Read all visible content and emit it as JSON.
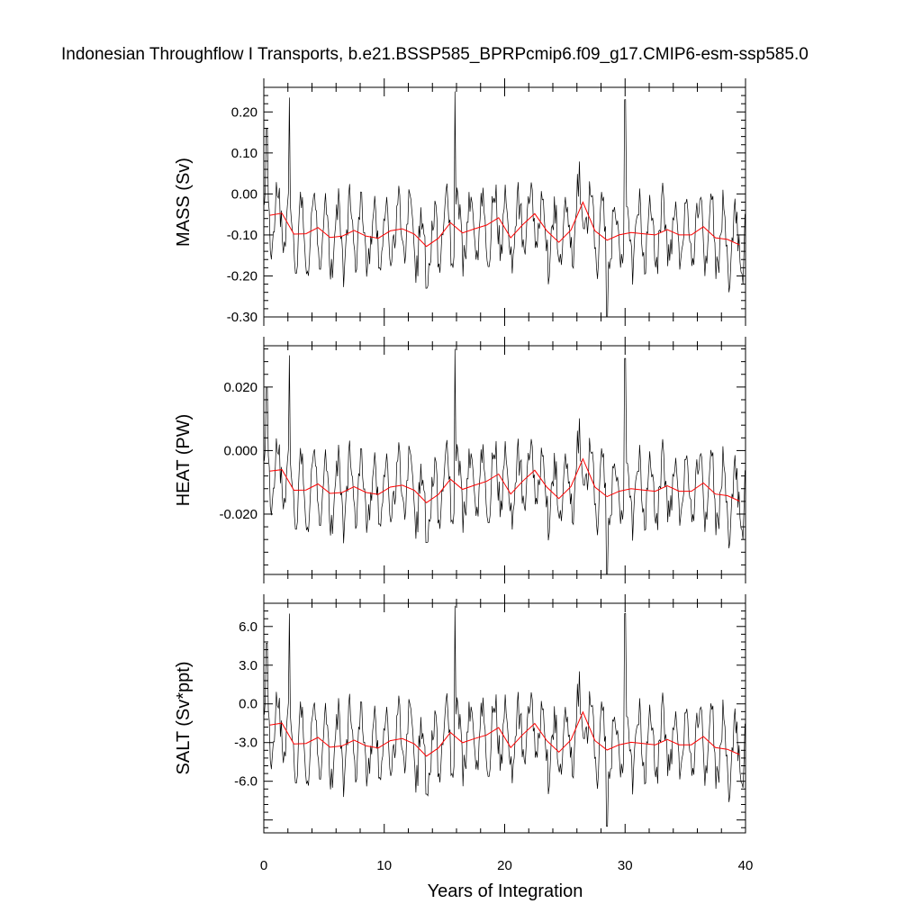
{
  "chart_data": {
    "type": "line",
    "title": "Indonesian Throughflow I Transports, b.e21.BSSP585_BPRPcmip6.f09_g17.CMIP6-esm-ssp585.0",
    "xlabel": "Years of Integration",
    "xlim": [
      0,
      40
    ],
    "xticks": [
      "0",
      "10",
      "20",
      "30",
      "40"
    ],
    "colors": {
      "monthly": "#000000",
      "annual_mean": "#ff0000"
    },
    "panels": [
      {
        "ylabel": "MASS (Sv)",
        "ylim": [
          -0.3,
          0.26
        ],
        "yticks": [
          {
            "v": 0.2,
            "label": "0.20"
          },
          {
            "v": 0.1,
            "label": "0.10"
          },
          {
            "v": 0.0,
            "label": "0.00"
          },
          {
            "v": -0.1,
            "label": "-0.10"
          },
          {
            "v": -0.2,
            "label": "-0.20"
          },
          {
            "v": -0.3,
            "label": "-0.30"
          }
        ],
        "annual_mean": [
          [
            0.5,
            -0.052
          ],
          [
            1.5,
            -0.047
          ],
          [
            2.5,
            -0.098
          ],
          [
            3.5,
            -0.097
          ],
          [
            4.5,
            -0.082
          ],
          [
            5.5,
            -0.106
          ],
          [
            6.5,
            -0.103
          ],
          [
            7.5,
            -0.089
          ],
          [
            8.5,
            -0.103
          ],
          [
            9.5,
            -0.108
          ],
          [
            10.5,
            -0.09
          ],
          [
            11.5,
            -0.085
          ],
          [
            12.5,
            -0.098
          ],
          [
            13.5,
            -0.128
          ],
          [
            14.5,
            -0.108
          ],
          [
            15.5,
            -0.07
          ],
          [
            16.5,
            -0.095
          ],
          [
            17.5,
            -0.085
          ],
          [
            18.5,
            -0.076
          ],
          [
            19.5,
            -0.058
          ],
          [
            20.5,
            -0.107
          ],
          [
            21.5,
            -0.075
          ],
          [
            22.5,
            -0.048
          ],
          [
            23.5,
            -0.09
          ],
          [
            24.5,
            -0.118
          ],
          [
            25.5,
            -0.088
          ],
          [
            26.5,
            -0.02
          ],
          [
            27.5,
            -0.09
          ],
          [
            28.5,
            -0.113
          ],
          [
            29.5,
            -0.1
          ],
          [
            30.5,
            -0.094
          ],
          [
            31.5,
            -0.097
          ],
          [
            32.5,
            -0.1
          ],
          [
            33.5,
            -0.087
          ],
          [
            34.5,
            -0.1
          ],
          [
            35.5,
            -0.1
          ],
          [
            36.5,
            -0.08
          ],
          [
            37.5,
            -0.107
          ],
          [
            38.5,
            -0.111
          ],
          [
            39.5,
            -0.124
          ]
        ],
        "monthly_extremes": [
          [
            0.25,
            0.16
          ],
          [
            2.1,
            0.235
          ],
          [
            13.5,
            -0.23
          ],
          [
            15.9,
            0.25
          ],
          [
            28.5,
            -0.3
          ],
          [
            30.0,
            0.23
          ],
          [
            39.8,
            -0.22
          ]
        ]
      },
      {
        "ylabel": "HEAT (PW)",
        "ylim": [
          -0.039,
          0.033
        ],
        "yticks": [
          {
            "v": 0.02,
            "label": "0.020"
          },
          {
            "v": 0.0,
            "label": "0.000"
          },
          {
            "v": -0.02,
            "label": "-0.020"
          }
        ],
        "annual_mean": [
          [
            0.5,
            -0.0065
          ],
          [
            1.5,
            -0.006
          ],
          [
            2.5,
            -0.0125
          ],
          [
            3.5,
            -0.0124
          ],
          [
            4.5,
            -0.0105
          ],
          [
            5.5,
            -0.0135
          ],
          [
            6.5,
            -0.0132
          ],
          [
            7.5,
            -0.0114
          ],
          [
            8.5,
            -0.0132
          ],
          [
            9.5,
            -0.0138
          ],
          [
            10.5,
            -0.0115
          ],
          [
            11.5,
            -0.0109
          ],
          [
            12.5,
            -0.0125
          ],
          [
            13.5,
            -0.0164
          ],
          [
            14.5,
            -0.0138
          ],
          [
            15.5,
            -0.009
          ],
          [
            16.5,
            -0.0122
          ],
          [
            17.5,
            -0.0109
          ],
          [
            18.5,
            -0.0097
          ],
          [
            19.5,
            -0.0074
          ],
          [
            20.5,
            -0.0137
          ],
          [
            21.5,
            -0.0096
          ],
          [
            22.5,
            -0.0062
          ],
          [
            23.5,
            -0.0115
          ],
          [
            24.5,
            -0.0151
          ],
          [
            25.5,
            -0.0113
          ],
          [
            26.5,
            -0.0026
          ],
          [
            27.5,
            -0.0115
          ],
          [
            28.5,
            -0.0145
          ],
          [
            29.5,
            -0.0128
          ],
          [
            30.5,
            -0.012
          ],
          [
            31.5,
            -0.0124
          ],
          [
            32.5,
            -0.0128
          ],
          [
            33.5,
            -0.0111
          ],
          [
            34.5,
            -0.0128
          ],
          [
            35.5,
            -0.0128
          ],
          [
            36.5,
            -0.0102
          ],
          [
            37.5,
            -0.0137
          ],
          [
            38.5,
            -0.0142
          ],
          [
            39.5,
            -0.0159
          ]
        ],
        "monthly_extremes": [
          [
            0.25,
            0.02
          ],
          [
            2.1,
            0.03
          ],
          [
            13.5,
            -0.029
          ],
          [
            15.9,
            0.032
          ],
          [
            28.5,
            -0.039
          ],
          [
            30.0,
            0.029
          ],
          [
            39.8,
            -0.028
          ]
        ]
      },
      {
        "ylabel": "SALT (Sv*ppt)",
        "ylim": [
          -10.0,
          7.8
        ],
        "yticks": [
          {
            "v": 6.0,
            "label": "6.0"
          },
          {
            "v": 3.0,
            "label": "3.0"
          },
          {
            "v": 0.0,
            "label": "0.0"
          },
          {
            "v": -3.0,
            "label": "-3.0"
          },
          {
            "v": -6.0,
            "label": "-6.0"
          }
        ],
        "annual_mean": [
          [
            0.5,
            -1.64
          ],
          [
            1.5,
            -1.49
          ],
          [
            2.5,
            -3.1
          ],
          [
            3.5,
            -3.07
          ],
          [
            4.5,
            -2.6
          ],
          [
            5.5,
            -3.36
          ],
          [
            6.5,
            -3.26
          ],
          [
            7.5,
            -2.82
          ],
          [
            8.5,
            -3.26
          ],
          [
            9.5,
            -3.42
          ],
          [
            10.5,
            -2.85
          ],
          [
            11.5,
            -2.69
          ],
          [
            12.5,
            -3.1
          ],
          [
            13.5,
            -4.05
          ],
          [
            14.5,
            -3.42
          ],
          [
            15.5,
            -2.22
          ],
          [
            16.5,
            -3.01
          ],
          [
            17.5,
            -2.69
          ],
          [
            18.5,
            -2.41
          ],
          [
            19.5,
            -1.84
          ],
          [
            20.5,
            -3.39
          ],
          [
            21.5,
            -2.38
          ],
          [
            22.5,
            -1.52
          ],
          [
            23.5,
            -2.85
          ],
          [
            24.5,
            -3.74
          ],
          [
            25.5,
            -2.79
          ],
          [
            26.5,
            -0.63
          ],
          [
            27.5,
            -2.85
          ],
          [
            28.5,
            -3.58
          ],
          [
            29.5,
            -3.17
          ],
          [
            30.5,
            -2.98
          ],
          [
            31.5,
            -3.07
          ],
          [
            32.5,
            -3.17
          ],
          [
            33.5,
            -2.76
          ],
          [
            34.5,
            -3.17
          ],
          [
            35.5,
            -3.17
          ],
          [
            36.5,
            -2.53
          ],
          [
            37.5,
            -3.39
          ],
          [
            38.5,
            -3.52
          ],
          [
            39.5,
            -3.93
          ]
        ],
        "monthly_extremes": [
          [
            0.25,
            4.7
          ],
          [
            2.1,
            7.0
          ],
          [
            13.5,
            -7.0
          ],
          [
            15.9,
            7.6
          ],
          [
            28.5,
            -9.5
          ],
          [
            30.0,
            7.0
          ],
          [
            39.8,
            -6.5
          ]
        ]
      }
    ]
  }
}
